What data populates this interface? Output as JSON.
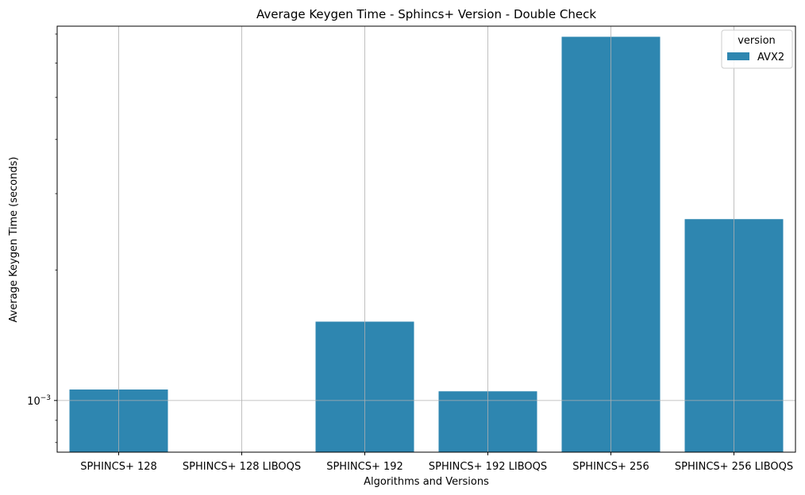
{
  "chart_data": {
    "type": "bar",
    "title": "Average Keygen Time - Sphincs+ Version - Double Check",
    "xlabel": "Algorithms and Versions",
    "ylabel": "Average Keygen Time (seconds)",
    "yscale": "log",
    "ylim": [
      0.00076,
      0.0073
    ],
    "yticks": [
      {
        "value": 0.001,
        "base": "10",
        "exp": "−3"
      }
    ],
    "grid": true,
    "categories": [
      "SPHINCS+ 128",
      "SPHINCS+ 128 LIBOQS",
      "SPHINCS+ 192",
      "SPHINCS+ 192 LIBOQS",
      "SPHINCS+ 256",
      "SPHINCS+ 256 LIBOQS"
    ],
    "series": [
      {
        "name": "AVX2",
        "color": "#2e86b0",
        "values": [
          0.00106,
          0.00075,
          0.00152,
          0.00105,
          0.0069,
          0.00262
        ]
      }
    ],
    "legend": {
      "title": "version",
      "placement": "upper right"
    }
  }
}
